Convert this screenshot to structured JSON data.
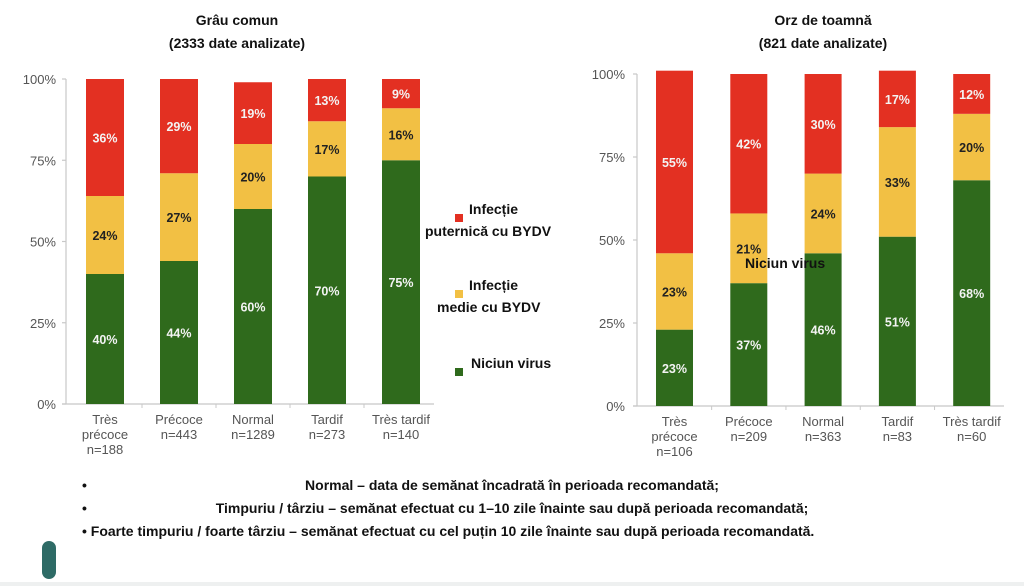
{
  "colors": {
    "severe": "#e33022",
    "medium": "#f2c044",
    "none": "#2f6a1c",
    "label_light": "#f3f3f3",
    "label_dark": "#222222",
    "axis": "#c8c8c8"
  },
  "legend": {
    "items": [
      {
        "key": "severe",
        "line1": "Infecție",
        "line2": "puternică cu BYDV"
      },
      {
        "key": "medium",
        "line1": "Infecție",
        "line2": "medie cu BYDV"
      },
      {
        "key": "none",
        "line1": "Niciun virus",
        "line2": ""
      }
    ]
  },
  "overlay_label": "Niciun virus",
  "chart_data": [
    {
      "type": "bar",
      "stacked": true,
      "title": "Grâu comun",
      "subtitle": "(2333 date analizate)",
      "xlabel": "",
      "ylabel": "",
      "ylim": [
        0,
        100
      ],
      "yticks": [
        "0%",
        "25%",
        "50%",
        "75%",
        "100%"
      ],
      "categories": [
        [
          "Très",
          "précoce",
          "n=188"
        ],
        [
          "Précoce",
          "n=443"
        ],
        [
          "Normal",
          "n=1289"
        ],
        [
          "Tardif",
          "n=273"
        ],
        [
          "Très tardif",
          "n=140"
        ]
      ],
      "series": [
        {
          "name": "Niciun virus",
          "key": "none",
          "values": [
            40,
            44,
            60,
            70,
            75
          ]
        },
        {
          "name": "Infecție medie cu BYDV",
          "key": "medium",
          "values": [
            24,
            27,
            20,
            17,
            16
          ]
        },
        {
          "name": "Infecție puternică cu BYDV",
          "key": "severe",
          "values": [
            36,
            29,
            19,
            13,
            9
          ]
        }
      ],
      "legend": "right"
    },
    {
      "type": "bar",
      "stacked": true,
      "title": "Orz de toamnă",
      "subtitle": "(821 date analizate)",
      "xlabel": "",
      "ylabel": "",
      "ylim": [
        0,
        100
      ],
      "yticks": [
        "0%",
        "25%",
        "50%",
        "75%",
        "100%"
      ],
      "categories": [
        [
          "Très",
          "précoce",
          "n=106"
        ],
        [
          "Précoce",
          "n=209"
        ],
        [
          "Normal",
          "n=363"
        ],
        [
          "Tardif",
          "n=83"
        ],
        [
          "Très tardif",
          "n=60"
        ]
      ],
      "series": [
        {
          "name": "Niciun virus",
          "key": "none",
          "values": [
            23,
            37,
            46,
            51,
            68
          ]
        },
        {
          "name": "Infecție medie cu BYDV",
          "key": "medium",
          "values": [
            23,
            21,
            24,
            33,
            20
          ]
        },
        {
          "name": "Infecție puternică cu BYDV",
          "key": "severe",
          "values": [
            55,
            42,
            30,
            17,
            12
          ]
        }
      ],
      "legend": "none"
    }
  ],
  "notes": [
    {
      "bullet": "•",
      "text": "Normal – data de semănat încadrată în perioada recomandată;"
    },
    {
      "bullet": "•",
      "text": "Timpuriu / târziu – semănat efectuat cu 1–10 zile înainte sau după perioada recomandată;"
    },
    {
      "bullet": "•",
      "text": "Foarte timpuriu / foarte târziu – semănat efectuat cu cel puțin 10 zile înainte sau după perioada recomandată."
    }
  ]
}
